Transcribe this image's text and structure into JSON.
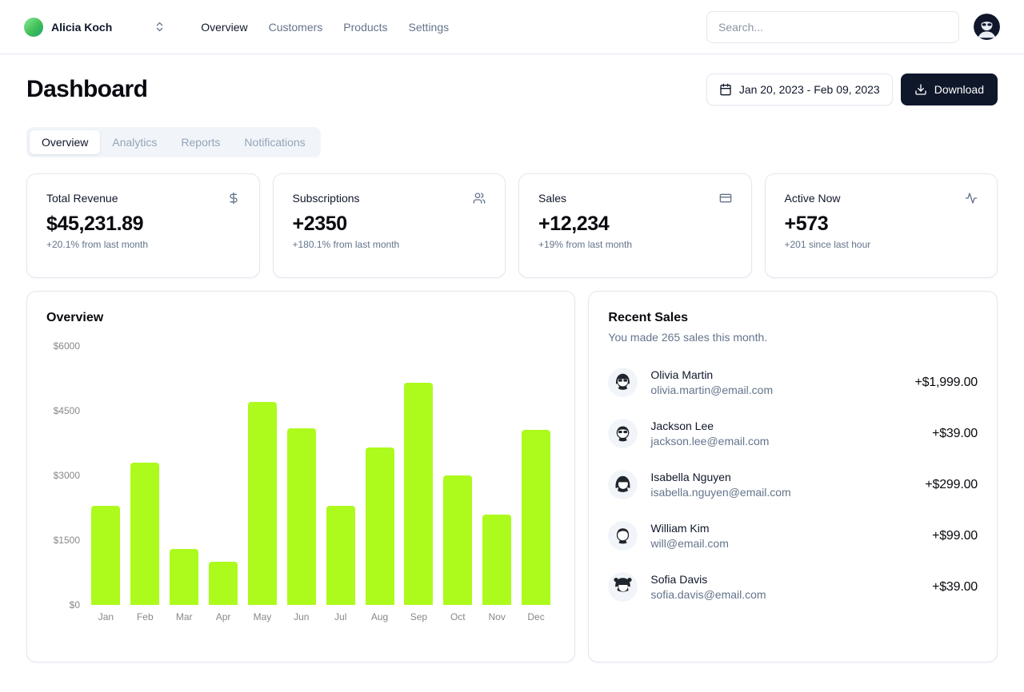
{
  "header": {
    "workspace": {
      "name": "Alicia Koch"
    },
    "nav": [
      {
        "label": "Overview",
        "active": true
      },
      {
        "label": "Customers",
        "active": false
      },
      {
        "label": "Products",
        "active": false
      },
      {
        "label": "Settings",
        "active": false
      }
    ],
    "search": {
      "placeholder": "Search..."
    }
  },
  "page": {
    "title": "Dashboard",
    "date_range": "Jan 20, 2023 - Feb 09, 2023",
    "download_label": "Download",
    "tabs": [
      {
        "label": "Overview",
        "active": true
      },
      {
        "label": "Analytics",
        "active": false
      },
      {
        "label": "Reports",
        "active": false
      },
      {
        "label": "Notifications",
        "active": false
      }
    ]
  },
  "stats": [
    {
      "title": "Total Revenue",
      "icon": "dollar-sign-icon",
      "value": "$45,231.89",
      "change": "+20.1% from last month"
    },
    {
      "title": "Subscriptions",
      "icon": "users-icon",
      "value": "+2350",
      "change": "+180.1% from last month"
    },
    {
      "title": "Sales",
      "icon": "credit-card-icon",
      "value": "+12,234",
      "change": "+19% from last month"
    },
    {
      "title": "Active Now",
      "icon": "activity-icon",
      "value": "+573",
      "change": "+201 since last hour"
    }
  ],
  "chart_data": {
    "type": "bar",
    "title": "Overview",
    "categories": [
      "Jan",
      "Feb",
      "Mar",
      "Apr",
      "May",
      "Jun",
      "Jul",
      "Aug",
      "Sep",
      "Oct",
      "Nov",
      "Dec"
    ],
    "values": [
      2300,
      3300,
      1300,
      1000,
      4700,
      4100,
      2300,
      3650,
      5150,
      3000,
      2100,
      4050
    ],
    "xlabel": "",
    "ylabel": "",
    "ylim": [
      0,
      6000
    ],
    "yticks": {
      "values": [
        0,
        1500,
        3000,
        4500,
        6000
      ],
      "labels": [
        "$0",
        "$1500",
        "$3000",
        "$4500",
        "$6000"
      ]
    },
    "grid": false,
    "legend": false,
    "bar_color": "#adfa1d",
    "tick_color": "#888888"
  },
  "recent_sales": {
    "title": "Recent Sales",
    "subtitle": "You made 265 sales this month.",
    "items": [
      {
        "name": "Olivia Martin",
        "email": "olivia.martin@email.com",
        "amount": "+$1,999.00"
      },
      {
        "name": "Jackson Lee",
        "email": "jackson.lee@email.com",
        "amount": "+$39.00"
      },
      {
        "name": "Isabella Nguyen",
        "email": "isabella.nguyen@email.com",
        "amount": "+$299.00"
      },
      {
        "name": "William Kim",
        "email": "will@email.com",
        "amount": "+$99.00"
      },
      {
        "name": "Sofia Davis",
        "email": "sofia.davis@email.com",
        "amount": "+$39.00"
      }
    ]
  },
  "colors": {
    "accent": "#adfa1d",
    "primary_button": "#0f172a",
    "muted_text": "#64748b",
    "border": "#e2e8f0"
  }
}
